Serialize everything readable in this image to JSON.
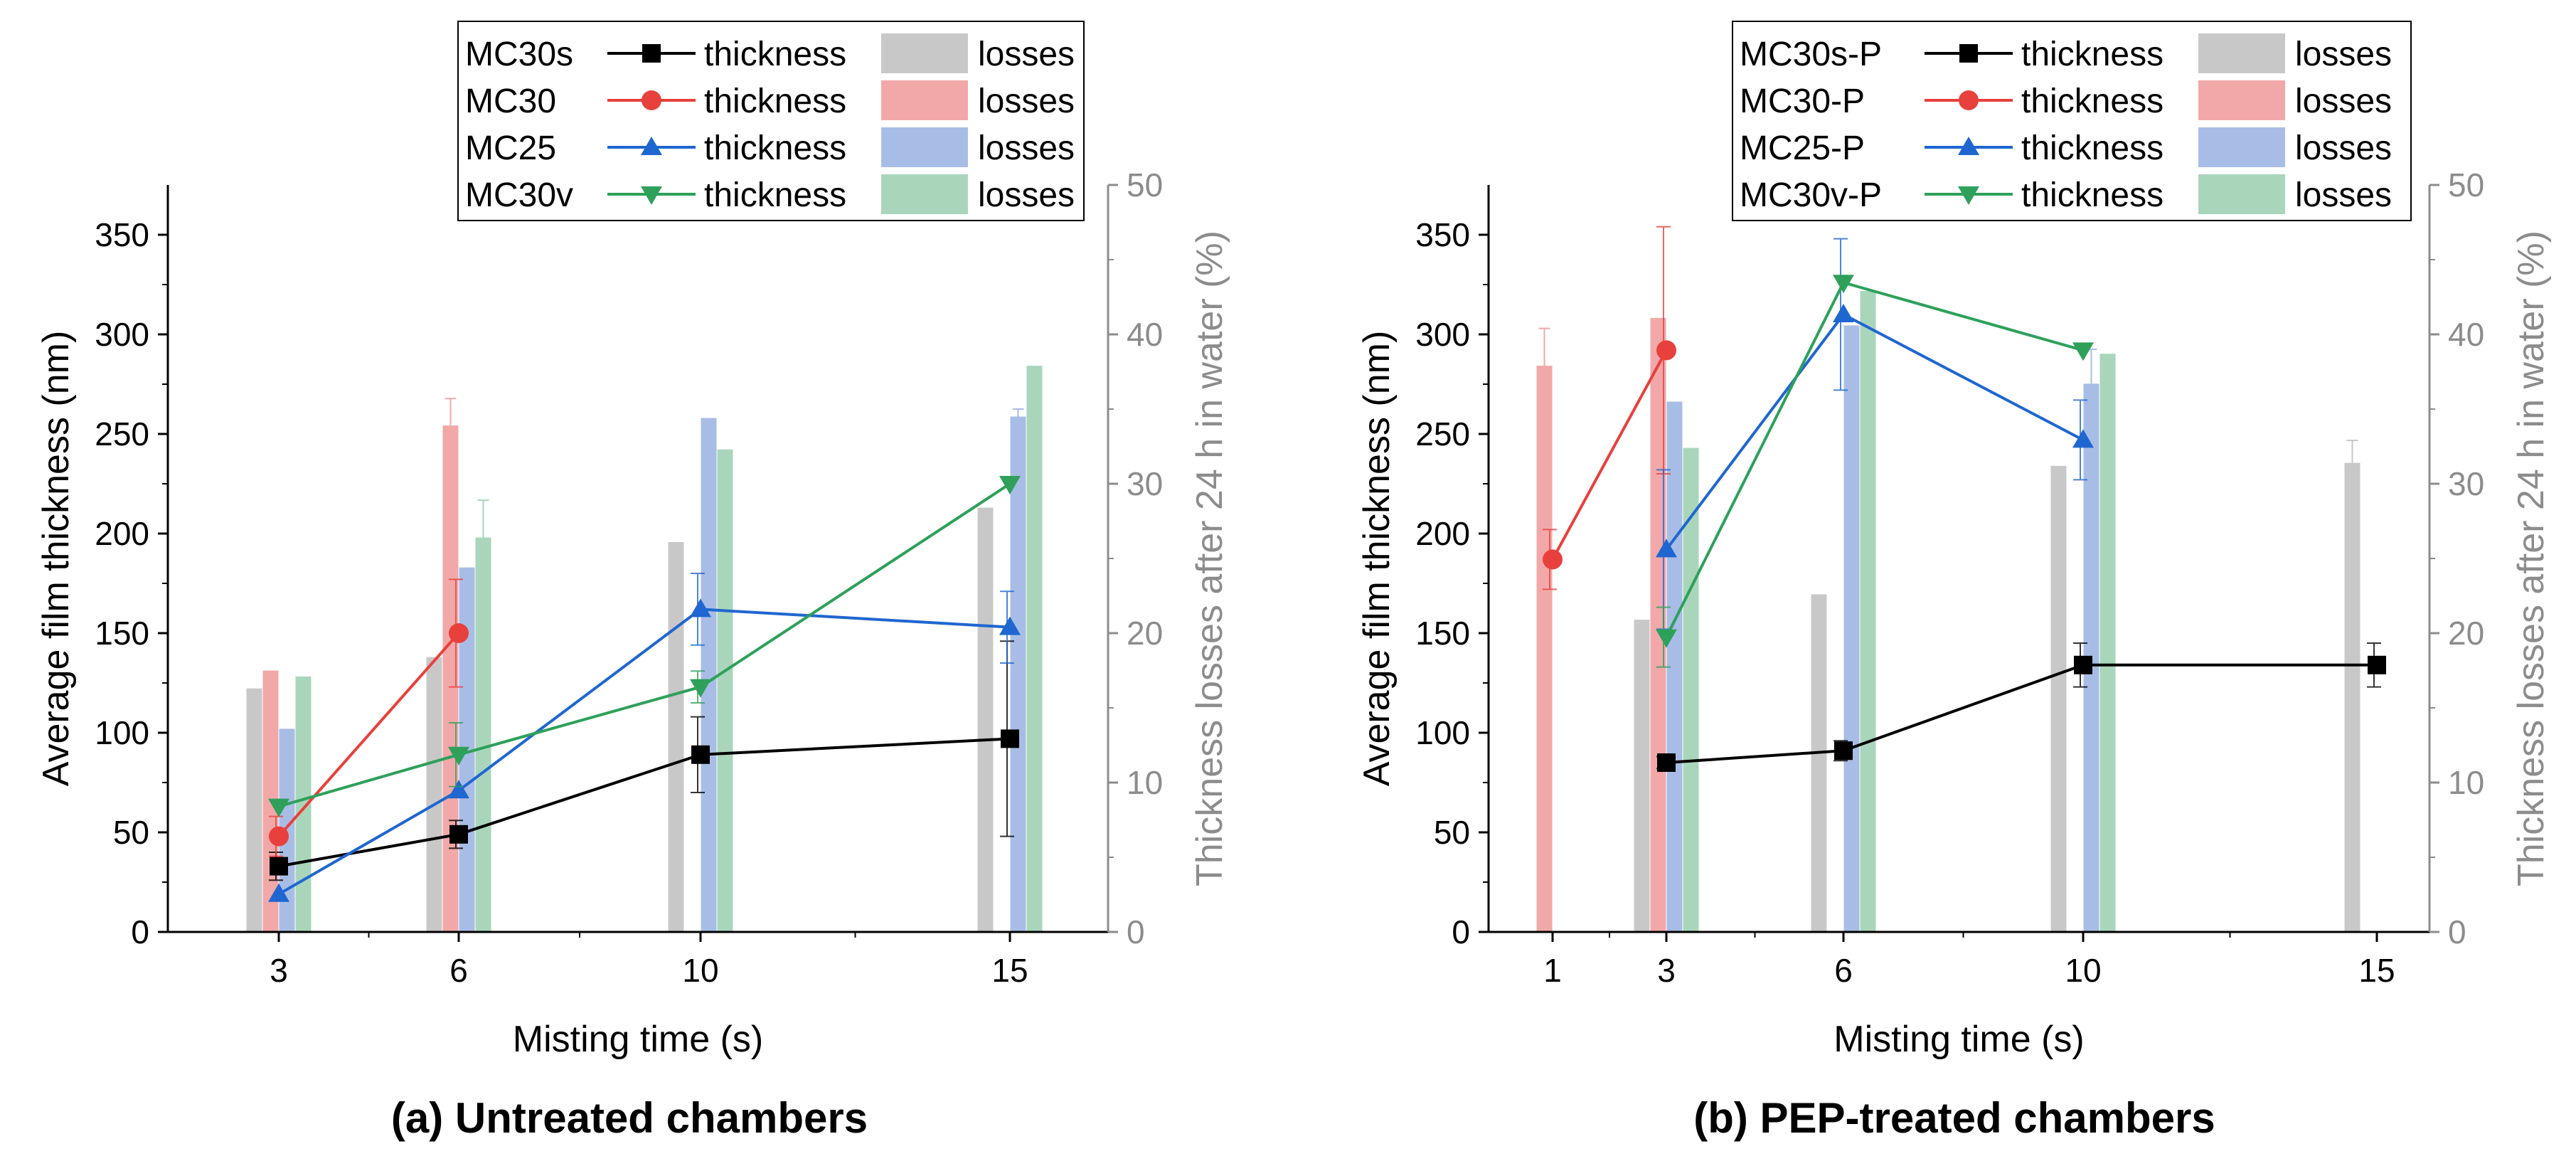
{
  "chart_data": [
    {
      "type": "bar+line",
      "caption": "(a) Untreated chambers",
      "xlabel": "Misting time (s)",
      "ylabel": "Average film thickness (nm)",
      "y2label": "Thickness losses after 24 h in water (%)",
      "categories": [
        3,
        6,
        10,
        15
      ],
      "ylim": [
        0,
        375
      ],
      "y2lim": [
        0,
        50
      ],
      "yticks": [
        0,
        50,
        100,
        150,
        200,
        250,
        300,
        350
      ],
      "y2ticks": [
        0,
        10,
        20,
        30,
        40,
        50
      ],
      "legend_position": "top",
      "legend_thickness_label": "thickness",
      "legend_losses_label": "losses",
      "series": [
        {
          "name": "MC30s",
          "color": "#000000",
          "marker": "square",
          "thickness": [
            33,
            49,
            89,
            97
          ],
          "thickness_err": [
            7,
            7,
            19,
            49
          ],
          "losses": [
            16.3,
            18.4,
            26.1,
            28.4
          ],
          "losses_err": [
            0,
            0,
            0,
            0
          ]
        },
        {
          "name": "MC30",
          "color": "#e8403c",
          "marker": "circle",
          "thickness": [
            48,
            150,
            null,
            null
          ],
          "thickness_err": [
            10,
            27,
            0,
            0
          ],
          "losses": [
            17.5,
            33.9,
            null,
            null
          ],
          "losses_err": [
            0,
            1.8,
            0,
            0
          ]
        },
        {
          "name": "MC25",
          "color": "#1f66d0",
          "marker": "triangle-up",
          "thickness": [
            19,
            71,
            162,
            153
          ],
          "thickness_err": [
            0,
            0,
            18,
            18
          ],
          "losses": [
            13.6,
            24.4,
            34.4,
            34.5
          ],
          "losses_err": [
            0,
            0,
            0,
            0.5
          ]
        },
        {
          "name": "MC30v",
          "color": "#2ea05a",
          "marker": "triangle-down",
          "thickness": [
            63,
            89,
            123,
            225
          ],
          "thickness_err": [
            0,
            16,
            8,
            0
          ],
          "losses": [
            17.1,
            26.4,
            32.3,
            37.9
          ],
          "losses_err": [
            0,
            2.5,
            0,
            0
          ]
        }
      ]
    },
    {
      "type": "bar+line",
      "caption": "(b) PEP-treated chambers",
      "xlabel": "Misting time (s)",
      "ylabel": "Average film thickness (nm)",
      "y2label": "Thickness losses after 24 h in water (%)",
      "categories": [
        1,
        3,
        6,
        10,
        15
      ],
      "ylim": [
        0,
        375
      ],
      "y2lim": [
        0,
        50
      ],
      "yticks": [
        0,
        50,
        100,
        150,
        200,
        250,
        300,
        350
      ],
      "y2ticks": [
        0,
        10,
        20,
        30,
        40,
        50
      ],
      "legend_position": "top",
      "legend_thickness_label": "thickness",
      "legend_losses_label": "losses",
      "series": [
        {
          "name": "MC30s-P",
          "color": "#000000",
          "marker": "square",
          "thickness": [
            null,
            85,
            91,
            134,
            134
          ],
          "thickness_err": [
            0,
            3,
            5,
            11,
            11
          ],
          "losses": [
            null,
            20.9,
            22.6,
            31.2,
            31.4
          ],
          "losses_err": [
            0,
            0,
            0,
            0,
            1.5
          ]
        },
        {
          "name": "MC30-P",
          "color": "#e8403c",
          "marker": "circle",
          "thickness": [
            187,
            292,
            null,
            null,
            null
          ],
          "thickness_err": [
            15,
            62,
            0,
            0,
            0
          ],
          "losses": [
            37.9,
            41.1,
            null,
            null,
            null
          ],
          "losses_err": [
            2.5,
            0,
            0,
            0,
            0
          ]
        },
        {
          "name": "MC25-P",
          "color": "#1f66d0",
          "marker": "triangle-up",
          "thickness": [
            null,
            192,
            310,
            247,
            null
          ],
          "thickness_err": [
            0,
            40,
            38,
            20,
            0
          ],
          "losses": [
            null,
            35.5,
            40.6,
            36.7,
            null
          ],
          "losses_err": [
            0,
            0,
            0,
            2.3,
            0
          ]
        },
        {
          "name": "MC30v-P",
          "color": "#2ea05a",
          "marker": "triangle-down",
          "thickness": [
            null,
            148,
            326,
            292,
            null
          ],
          "thickness_err": [
            0,
            15,
            0,
            0,
            0
          ],
          "losses": [
            null,
            32.4,
            42.9,
            38.7,
            null
          ],
          "losses_err": [
            0,
            0,
            0,
            0,
            0
          ]
        }
      ]
    }
  ]
}
